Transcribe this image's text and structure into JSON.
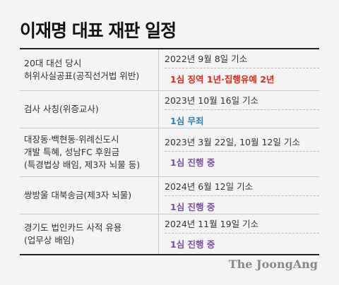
{
  "title": "이재명 대표 재판 일정",
  "colors": {
    "red": "#e0261b",
    "blue": "#2a7fc1",
    "purple": "#7b4fa3"
  },
  "rows": [
    {
      "case_lines": [
        "20대 대선 당시",
        "허위사실공표(공직선거법 위반)"
      ],
      "dates": "2022년 9월 8일 기소",
      "verdict": "1심 징역 1년·집행유예 2년",
      "verdict_color": "#e0261b"
    },
    {
      "case_lines": [
        "검사 사칭(위증교사)"
      ],
      "dates": "2023년 10월 16일 기소",
      "verdict": "1심 무죄",
      "verdict_color": "#2a7fc1"
    },
    {
      "case_lines": [
        "대장동·백현동·위례신도시",
        "개발 특혜, 성남FC 후원금",
        "(특경법상 배임, 제3자 뇌물 등)"
      ],
      "dates": "2023년 3월 22일, 10월 12일 기소",
      "verdict": "1심 진행 중",
      "verdict_color": "#7b4fa3"
    },
    {
      "case_lines": [
        "쌍방울 대북송금(제3자 뇌물)"
      ],
      "dates": "2024년 6월 12일 기소",
      "verdict": "1심 진행 중",
      "verdict_color": "#7b4fa3"
    },
    {
      "case_lines": [
        "경기도 법인카드 사적 유용",
        "(업무상 배임)"
      ],
      "dates": "2024년 11월 19일 기소",
      "verdict": "1심 진행 중",
      "verdict_color": "#7b4fa3"
    }
  ],
  "source": "The JoongAng"
}
